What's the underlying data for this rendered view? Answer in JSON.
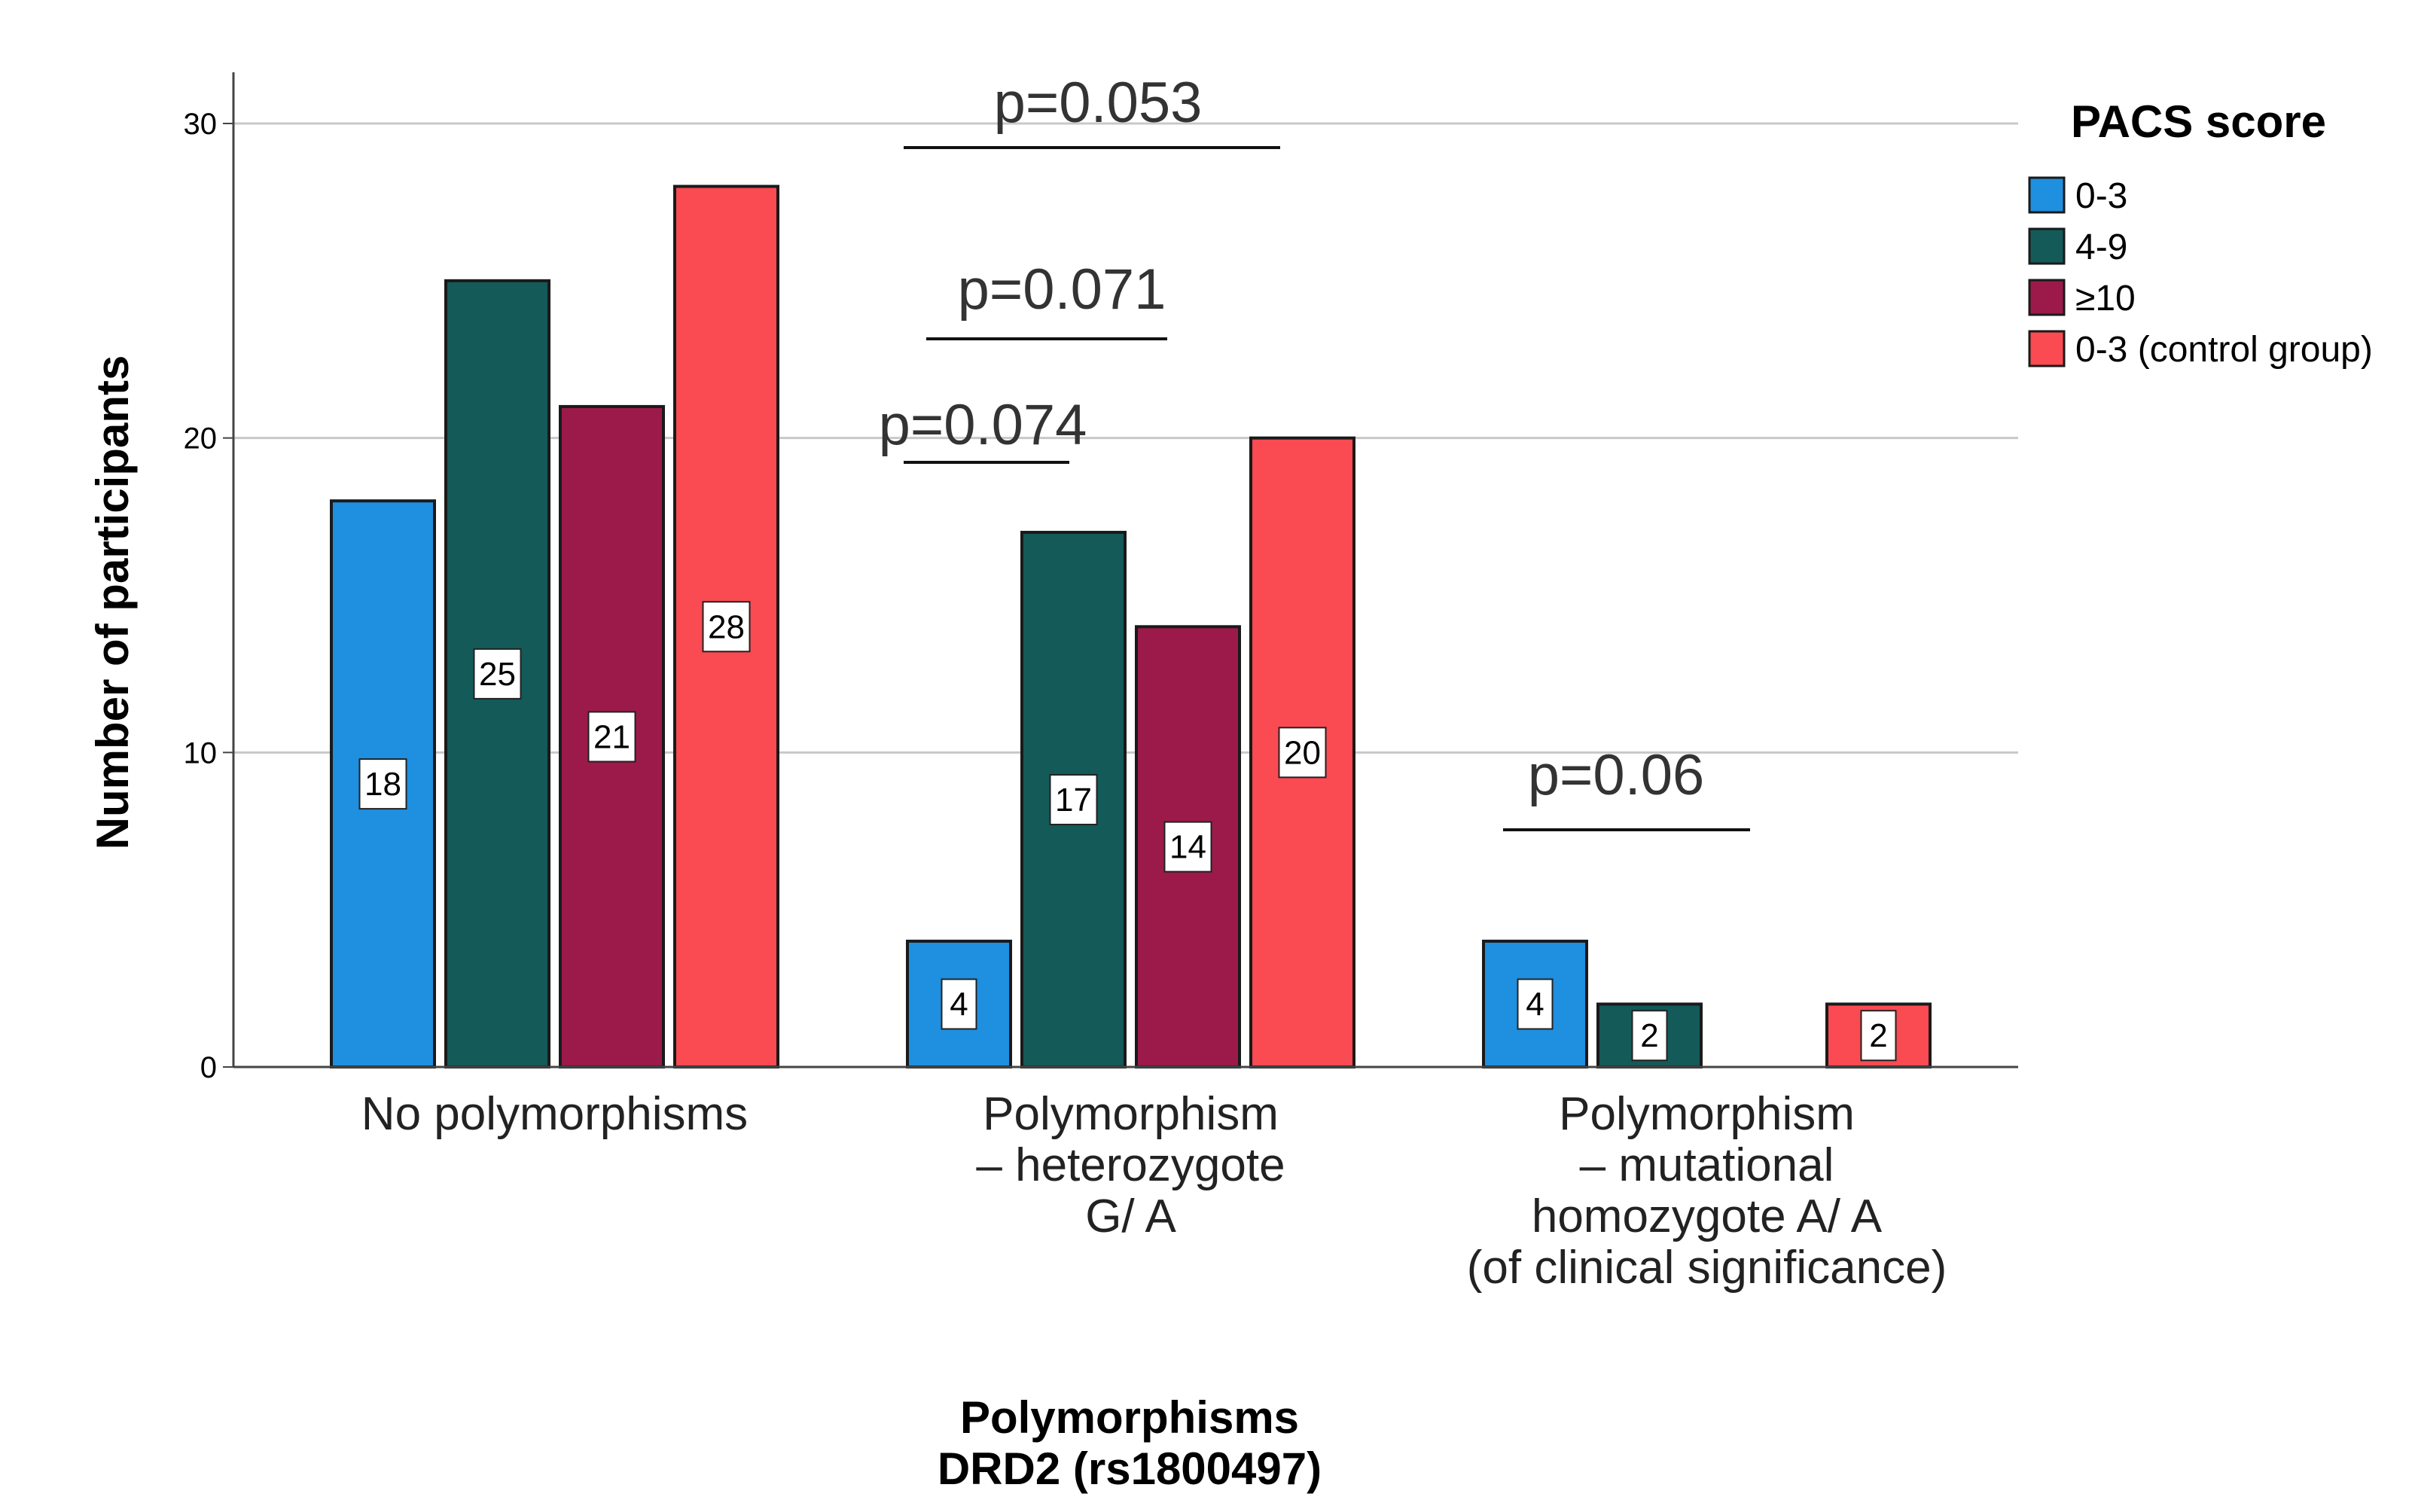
{
  "chart_data": {
    "type": "bar",
    "xlabel": "Polymorphisms\nDRD2 (rs1800497)",
    "ylabel": "Number of participants",
    "ylim": [
      0,
      30
    ],
    "yticks": [
      0,
      10,
      20,
      30
    ],
    "grid": true,
    "categories": [
      "No polymorphisms",
      "Polymorphism\n– heterozygote\nG/ A",
      "Polymorphism\n– mutational\nhomozygote A/ A\n(of clinical significance)"
    ],
    "legend": {
      "title": "PACS score",
      "placement": "right"
    },
    "series": [
      {
        "name": "0-3",
        "color": "#1f8fe0",
        "values": [
          18,
          4,
          4
        ]
      },
      {
        "name": "4-9",
        "color": "#135a58",
        "values": [
          25,
          17,
          2
        ]
      },
      {
        "name": "≥10",
        "color": "#9b1a4a",
        "values": [
          21,
          14,
          0
        ]
      },
      {
        "name": "0-3 (control group)",
        "color": "#fa4a52",
        "values": [
          28,
          20,
          2
        ]
      }
    ],
    "annotations": [
      {
        "text": "p=0.053",
        "category": 1
      },
      {
        "text": "p=0.071",
        "category": 1
      },
      {
        "text": "p=0.074",
        "category": 1
      },
      {
        "text": "p=0.06",
        "category": 2
      }
    ]
  }
}
